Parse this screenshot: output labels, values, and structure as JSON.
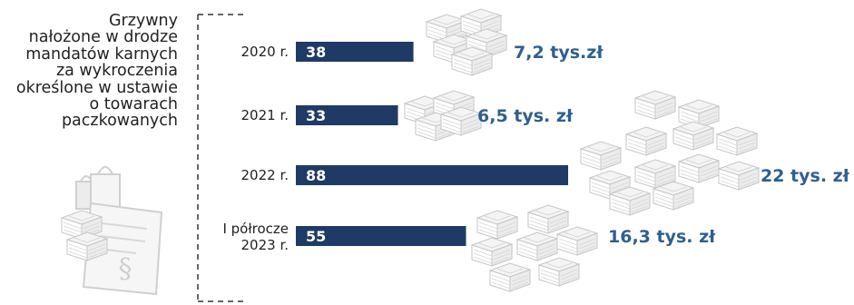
{
  "title_lines": [
    "Grzywny",
    "nałożone w drodze",
    "mandatów karnych",
    "za wykroczenia",
    "określone w ustawie",
    "o towarach",
    "paczkowanych"
  ],
  "colors": {
    "bar": "#1f3a64",
    "amount_text": "#2f5f8f",
    "icons": "#cfcfcf",
    "axis": "#333333"
  },
  "icons": [
    "shopping-bags-icon",
    "document-section-icon",
    "money-stack-icon"
  ],
  "chart_data": {
    "type": "bar",
    "orientation": "horizontal",
    "categories": [
      "2020 r.",
      "2021 r.",
      "2022 r.",
      "I półrocze 2023 r."
    ],
    "values": [
      38,
      33,
      88,
      55
    ],
    "amounts": [
      "7,2 tys.zł",
      "6,5 tys. zł",
      "22 tys. zł",
      "16,3 tys. zł"
    ],
    "xlim": [
      0,
      88
    ]
  }
}
